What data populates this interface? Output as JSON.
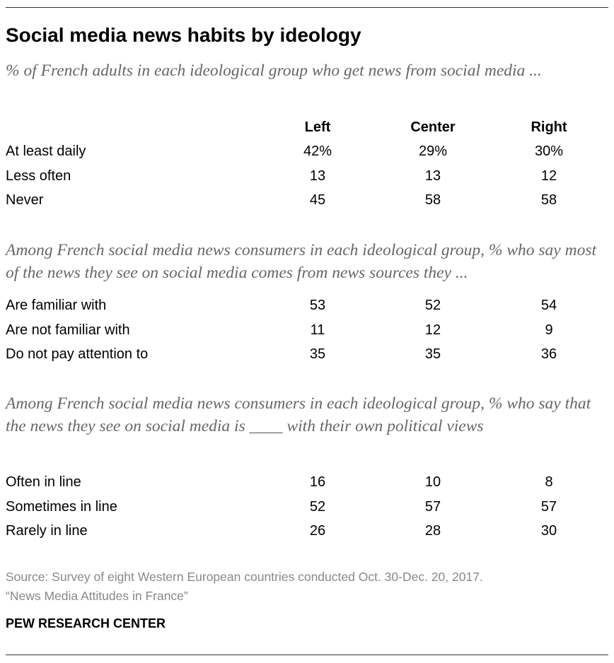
{
  "header": {
    "title": "Social media news habits by ideology",
    "subtitle": "% of French adults in each ideological group who get news from social media ..."
  },
  "table": {
    "columns": [
      "Left",
      "Center",
      "Right"
    ],
    "sections": [
      {
        "rows": [
          {
            "label": "At least daily",
            "values": [
              "42%",
              "29%",
              "30%"
            ]
          },
          {
            "label": "Less often",
            "values": [
              "13",
              "13",
              "12"
            ]
          },
          {
            "label": "Never",
            "values": [
              "45",
              "58",
              "58"
            ]
          }
        ]
      },
      {
        "note": "Among French social media news consumers in each ideological group, % who say most of the news they see on social media comes from news sources they ...",
        "rows": [
          {
            "label": "Are familiar with",
            "values": [
              "53",
              "52",
              "54"
            ]
          },
          {
            "label": "Are not familiar with",
            "values": [
              "11",
              "12",
              "9"
            ]
          },
          {
            "label": "Do not pay attention to",
            "values": [
              "35",
              "35",
              "36"
            ]
          }
        ]
      },
      {
        "note": "Among French social media news consumers in each ideological group, % who say that the news they see on social media is ____ with their own political views",
        "rows": [
          {
            "label": "Often in line",
            "values": [
              "16",
              "10",
              "8"
            ]
          },
          {
            "label": "Sometimes in line",
            "values": [
              "52",
              "57",
              "57"
            ]
          },
          {
            "label": "Rarely in line",
            "values": [
              "26",
              "28",
              "30"
            ]
          }
        ]
      }
    ]
  },
  "footer": {
    "source": "Source: Survey of eight Western European countries conducted Oct. 30-Dec. 20, 2017.",
    "report": "“News Media Attitudes in France”",
    "brand": "PEW RESEARCH CENTER"
  }
}
